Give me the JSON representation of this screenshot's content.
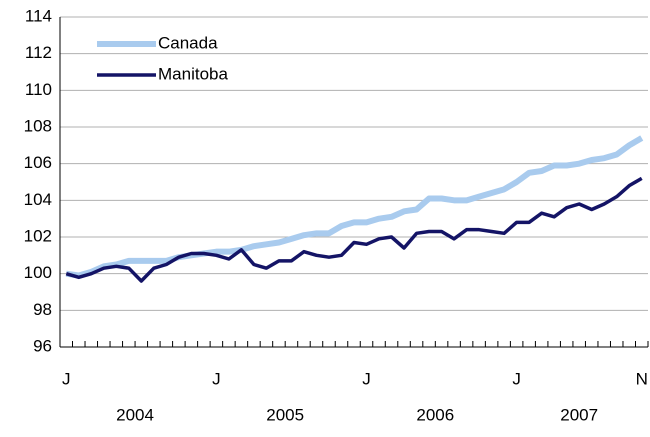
{
  "chart_data": {
    "type": "line",
    "categories": [
      "J",
      null,
      null,
      null,
      null,
      null,
      null,
      null,
      null,
      null,
      null,
      null,
      "J",
      null,
      null,
      null,
      null,
      null,
      null,
      null,
      null,
      null,
      null,
      null,
      "J",
      null,
      null,
      null,
      null,
      null,
      null,
      null,
      null,
      null,
      null,
      null,
      "J",
      null,
      null,
      null,
      null,
      null,
      null,
      null,
      null,
      null,
      "N"
    ],
    "year_labels": [
      "2004",
      "2005",
      "2006",
      "2007"
    ],
    "series": [
      {
        "name": "Canada",
        "color": "#a9cbee",
        "values": [
          100.0,
          99.9,
          100.1,
          100.4,
          100.5,
          100.7,
          100.7,
          100.7,
          100.7,
          100.9,
          101.0,
          101.1,
          101.2,
          101.2,
          101.3,
          101.5,
          101.6,
          101.7,
          101.9,
          102.1,
          102.2,
          102.2,
          102.6,
          102.8,
          102.8,
          103.0,
          103.1,
          103.4,
          103.5,
          104.1,
          104.1,
          104.0,
          104.0,
          104.2,
          104.4,
          104.6,
          105.0,
          105.5,
          105.6,
          105.9,
          105.9,
          106.0,
          106.2,
          106.3,
          106.5,
          107.0,
          107.4
        ]
      },
      {
        "name": "Manitoba",
        "color": "#141466",
        "values": [
          100.0,
          99.8,
          100.0,
          100.3,
          100.4,
          100.3,
          99.6,
          100.3,
          100.5,
          100.9,
          101.1,
          101.1,
          101.0,
          100.8,
          101.3,
          100.5,
          100.3,
          100.7,
          100.7,
          101.2,
          101.0,
          100.9,
          101.0,
          101.7,
          101.6,
          101.9,
          102.0,
          101.4,
          102.2,
          102.3,
          102.3,
          101.9,
          102.4,
          102.4,
          102.3,
          102.2,
          102.8,
          102.8,
          103.3,
          103.1,
          103.6,
          103.8,
          103.5,
          103.8,
          104.2,
          104.8,
          105.2
        ]
      }
    ],
    "ylim": [
      96,
      114
    ],
    "yticks": [
      96,
      98,
      100,
      102,
      104,
      106,
      108,
      110,
      112,
      114
    ],
    "grid": true,
    "legend": "upper-left"
  }
}
